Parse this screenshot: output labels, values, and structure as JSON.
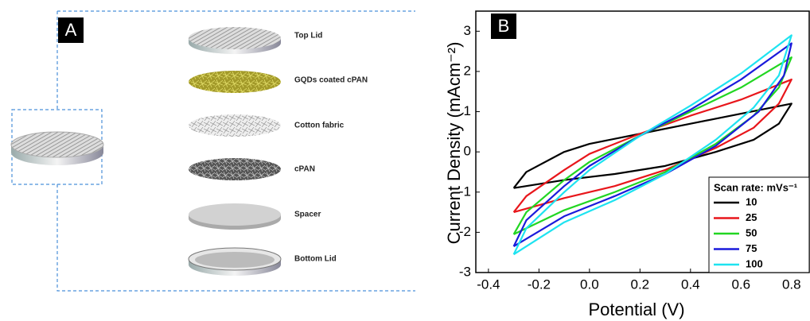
{
  "diagram": {
    "panel_label": "A",
    "layers": [
      "Top Lid",
      "GQDs coated cPAN",
      "Cotton fabric",
      "cPAN",
      "Spacer",
      "Bottom Lid"
    ]
  },
  "chart_data": {
    "type": "line",
    "panel_label": "B",
    "x_label": "Potential (V)",
    "y_label": "Current Density (mAcm⁻²)",
    "legend_title": "Scan rate: mVs⁻¹",
    "legend_loc": "lower right",
    "xlim": [
      -0.45,
      0.87
    ],
    "ylim": [
      -3,
      3.5
    ],
    "xticks": [
      -0.4,
      -0.2,
      {
        "value": 0,
        "label": "0.0"
      },
      0.2,
      0.4,
      0.6,
      0.8
    ],
    "yticks": [
      -3,
      -2,
      -1,
      0,
      1,
      2,
      3
    ],
    "series": [
      {
        "name": "10",
        "color": "#000000",
        "x": [
          -0.3,
          -0.25,
          -0.1,
          0,
          0.2,
          0.4,
          0.6,
          0.8,
          0.75,
          0.65,
          0.5,
          0.3,
          0.1,
          -0.1,
          -0.3
        ],
        "values": [
          -0.9,
          -0.5,
          0.0,
          0.2,
          0.45,
          0.7,
          0.95,
          1.2,
          0.7,
          0.3,
          0.0,
          -0.35,
          -0.55,
          -0.7,
          -0.9
        ]
      },
      {
        "name": "25",
        "color": "#e8161b",
        "x": [
          -0.3,
          -0.25,
          -0.1,
          0,
          0.2,
          0.4,
          0.6,
          0.8,
          0.75,
          0.65,
          0.5,
          0.3,
          0.1,
          -0.1,
          -0.3
        ],
        "values": [
          -1.5,
          -1.1,
          -0.45,
          -0.05,
          0.45,
          0.9,
          1.3,
          1.8,
          1.2,
          0.6,
          0.1,
          -0.45,
          -0.85,
          -1.15,
          -1.5
        ]
      },
      {
        "name": "50",
        "color": "#22d622",
        "x": [
          -0.3,
          -0.25,
          -0.1,
          0,
          0.2,
          0.4,
          0.6,
          0.8,
          0.75,
          0.65,
          0.5,
          0.3,
          0.1,
          -0.1,
          -0.3
        ],
        "values": [
          -2.05,
          -1.5,
          -0.7,
          -0.25,
          0.4,
          1.0,
          1.6,
          2.35,
          1.6,
          0.9,
          0.2,
          -0.5,
          -1.0,
          -1.45,
          -2.05
        ]
      },
      {
        "name": "75",
        "color": "#1a1adb",
        "x": [
          -0.3,
          -0.25,
          -0.1,
          0,
          0.2,
          0.4,
          0.6,
          0.8,
          0.77,
          0.67,
          0.5,
          0.3,
          0.1,
          -0.1,
          -0.3
        ],
        "values": [
          -2.35,
          -1.7,
          -0.85,
          -0.35,
          0.4,
          1.05,
          1.8,
          2.7,
          1.9,
          1.0,
          0.15,
          -0.55,
          -1.1,
          -1.6,
          -2.35
        ]
      },
      {
        "name": "100",
        "color": "#1ee3f0",
        "x": [
          -0.3,
          -0.25,
          -0.1,
          0,
          0.2,
          0.4,
          0.6,
          0.8,
          0.75,
          0.65,
          0.5,
          0.3,
          0.1,
          -0.1,
          -0.3
        ],
        "values": [
          -2.55,
          -1.9,
          -1.0,
          -0.45,
          0.4,
          1.15,
          1.95,
          2.9,
          1.9,
          1.1,
          0.3,
          -0.55,
          -1.2,
          -1.75,
          -2.55
        ]
      }
    ]
  }
}
